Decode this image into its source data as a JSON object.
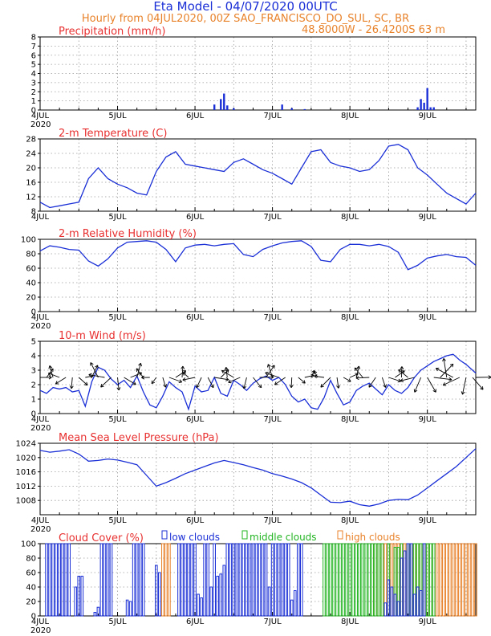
{
  "header": {
    "title": "Eta Model - 04/07/2020 00UTC",
    "subtitle_line1": "Hourly from 04JUL2020, 00Z  SAO_FRANCISCO_DO_SUL, SC, BR",
    "subtitle_line2": "48.8000W - 26.4200S     63  m"
  },
  "x_axis": {
    "ticks": [
      "4JUL",
      "5JUL",
      "6JUL",
      "7JUL",
      "8JUL",
      "9JUL"
    ],
    "year": "2020"
  },
  "legend": {
    "low": "low clouds",
    "middle": "middle clouds",
    "high": "high clouds"
  },
  "colors": {
    "line": "#1a2fd6",
    "low": "#1a2fd6",
    "middle": "#22b422",
    "high": "#e8822a",
    "title": "#e83030"
  },
  "chart_data": [
    {
      "type": "bar",
      "title": "Precipitation (mm/h)",
      "ylim": [
        0,
        8
      ],
      "yticks": [
        "0",
        "1",
        "2",
        "3",
        "4",
        "5",
        "6",
        "7",
        "8"
      ],
      "x": [
        54,
        56,
        57,
        58,
        60,
        75,
        78,
        82,
        117,
        118,
        119,
        120,
        121,
        122
      ],
      "values": [
        0.6,
        1.2,
        1.8,
        0.5,
        0.2,
        0.6,
        0.2,
        0.1,
        0.3,
        1.2,
        0.8,
        2.4,
        0.3,
        0.3
      ]
    },
    {
      "type": "line",
      "title": "2-m Temperature (C)",
      "ylim": [
        8,
        28
      ],
      "yticks": [
        "8",
        "12",
        "16",
        "20",
        "24",
        "28"
      ],
      "x": [
        0,
        3,
        6,
        9,
        12,
        15,
        18,
        21,
        24,
        27,
        30,
        33,
        36,
        39,
        42,
        45,
        48,
        51,
        54,
        57,
        60,
        63,
        66,
        69,
        72,
        75,
        78,
        81,
        84,
        87,
        90,
        93,
        96,
        99,
        102,
        105,
        108,
        111,
        114,
        117,
        120,
        123,
        126,
        129,
        132,
        135
      ],
      "values": [
        10.5,
        9,
        9.5,
        10,
        10.5,
        17,
        20,
        17,
        15.5,
        14.5,
        13,
        12.5,
        19,
        23,
        24.5,
        21,
        20.5,
        20,
        19.5,
        19,
        21.5,
        22.5,
        21,
        19.5,
        18.5,
        17,
        15.5,
        20,
        24.5,
        25,
        21.5,
        20.5,
        20,
        19,
        19.5,
        22,
        26,
        26.5,
        25,
        20,
        18,
        15.5,
        13,
        11.5,
        10,
        13
      ]
    },
    {
      "type": "line",
      "title": "2-m Relative Humidity (%)",
      "ylim": [
        0,
        100
      ],
      "yticks": [
        "0",
        "20",
        "40",
        "60",
        "80",
        "100"
      ],
      "x": [
        0,
        3,
        6,
        9,
        12,
        15,
        18,
        21,
        24,
        27,
        30,
        33,
        36,
        39,
        42,
        45,
        48,
        51,
        54,
        57,
        60,
        63,
        66,
        69,
        72,
        75,
        78,
        81,
        84,
        87,
        90,
        93,
        96,
        99,
        102,
        105,
        108,
        111,
        114,
        117,
        120,
        123,
        126,
        129,
        132,
        135
      ],
      "values": [
        84,
        91,
        89,
        86,
        85,
        70,
        63,
        73,
        88,
        96,
        97,
        98,
        96,
        86,
        69,
        88,
        92,
        93,
        91,
        93,
        94,
        79,
        76,
        86,
        91,
        95,
        97,
        98,
        90,
        71,
        69,
        86,
        93,
        93,
        91,
        93,
        90,
        82,
        58,
        64,
        74,
        77,
        79,
        76,
        75,
        64
      ]
    },
    {
      "type": "line",
      "title": "10-m Wind (m/s)",
      "ylim": [
        0,
        5
      ],
      "yticks": [
        "0",
        "1",
        "2",
        "3",
        "4",
        "5"
      ],
      "x": [
        0,
        2,
        4,
        6,
        8,
        10,
        12,
        14,
        16,
        18,
        20,
        22,
        24,
        26,
        28,
        30,
        32,
        34,
        36,
        38,
        40,
        42,
        44,
        46,
        48,
        50,
        52,
        54,
        56,
        58,
        60,
        62,
        64,
        66,
        68,
        70,
        72,
        74,
        76,
        78,
        80,
        82,
        84,
        86,
        88,
        90,
        92,
        94,
        96,
        98,
        100,
        102,
        104,
        106,
        108,
        110,
        112,
        114,
        116,
        118,
        120,
        122,
        124,
        126,
        128,
        130,
        132,
        134,
        135
      ],
      "values": [
        1.6,
        1.4,
        1.8,
        1.7,
        1.8,
        1.5,
        1.6,
        0.5,
        2.2,
        3.2,
        3.0,
        2.4,
        2.0,
        2.3,
        1.8,
        2.6,
        1.5,
        0.6,
        0.4,
        1.2,
        2.2,
        1.8,
        1.5,
        0.3,
        1.9,
        1.5,
        1.6,
        2.5,
        1.4,
        1.2,
        2.3,
        2.0,
        1.6,
        2.1,
        2.4,
        2.6,
        2.3,
        2.5,
        2.0,
        1.2,
        0.8,
        1.0,
        0.4,
        0.3,
        1.1,
        2.3,
        1.4,
        0.6,
        0.8,
        1.6,
        1.9,
        2.1,
        1.7,
        1.3,
        2.0,
        1.6,
        1.4,
        1.8,
        2.5,
        3.0,
        3.3,
        3.6,
        3.8,
        4.0,
        4.1,
        3.7,
        3.4,
        3.0,
        2.8
      ]
    },
    {
      "type": "line",
      "title": "Mean Sea Level Pressure (hPa)",
      "ylim": [
        1004,
        1024
      ],
      "yticks": [
        "1008",
        "1012",
        "1016",
        "1020",
        "1024"
      ],
      "x": [
        0,
        3,
        6,
        9,
        12,
        15,
        18,
        21,
        24,
        27,
        30,
        33,
        36,
        39,
        42,
        45,
        48,
        51,
        54,
        57,
        60,
        63,
        66,
        69,
        72,
        75,
        78,
        81,
        84,
        87,
        90,
        93,
        96,
        99,
        102,
        105,
        108,
        111,
        114,
        117,
        120,
        123,
        126,
        129,
        132,
        135
      ],
      "values": [
        1022,
        1021.5,
        1021.8,
        1022.2,
        1021,
        1019,
        1019.2,
        1019.6,
        1019.3,
        1018.7,
        1018,
        1015,
        1012,
        1013,
        1014.2,
        1015.5,
        1016.5,
        1017.5,
        1018.5,
        1019.2,
        1018.6,
        1018,
        1017.2,
        1016.5,
        1015.5,
        1014.8,
        1014,
        1013,
        1011.5,
        1009.5,
        1007.5,
        1007.4,
        1007.8,
        1006.8,
        1006.4,
        1007,
        1008,
        1008.3,
        1008.2,
        1009.5,
        1011.5,
        1013.5,
        1015.5,
        1017.5,
        1020,
        1022.5
      ]
    },
    {
      "type": "bar",
      "title": "Cloud Cover (%)",
      "ylim": [
        0,
        100
      ],
      "yticks": [
        "0",
        "20",
        "40",
        "60",
        "80",
        "100"
      ],
      "series": [
        {
          "name": "low clouds",
          "x": [
            2,
            3,
            4,
            5,
            6,
            7,
            8,
            9,
            11,
            12,
            13,
            17,
            18,
            19,
            20,
            21,
            22,
            27,
            28,
            29,
            30,
            31,
            32,
            36,
            37,
            43,
            44,
            45,
            46,
            47,
            48,
            49,
            50,
            51,
            52,
            53,
            54,
            55,
            56,
            57,
            58,
            59,
            60,
            61,
            62,
            63,
            64,
            65,
            66,
            67,
            68,
            69,
            70,
            71,
            72,
            73,
            74,
            75,
            76,
            77,
            78,
            79,
            80,
            81,
            107,
            108,
            109,
            110,
            111,
            112,
            113,
            114,
            115,
            116,
            117,
            118,
            119
          ],
          "values": [
            100,
            100,
            100,
            100,
            100,
            100,
            100,
            100,
            40,
            55,
            55,
            5,
            12,
            100,
            100,
            100,
            100,
            22,
            20,
            100,
            100,
            100,
            100,
            70,
            60,
            100,
            100,
            100,
            100,
            100,
            100,
            30,
            25,
            100,
            100,
            40,
            100,
            55,
            58,
            70,
            100,
            100,
            100,
            100,
            100,
            100,
            100,
            100,
            100,
            100,
            100,
            100,
            100,
            40,
            100,
            100,
            100,
            100,
            100,
            100,
            22,
            35,
            100,
            100,
            18,
            50,
            40,
            30,
            20,
            80,
            90,
            100,
            100,
            30,
            40,
            35,
            100
          ]
        },
        {
          "name": "middle clouds",
          "x": [
            88,
            89,
            90,
            91,
            92,
            93,
            94,
            95,
            96,
            97,
            98,
            99,
            100,
            101,
            102,
            103,
            104,
            105,
            106,
            108,
            110,
            111,
            112,
            114,
            115,
            116,
            117,
            118,
            119,
            120,
            121,
            122
          ],
          "values": [
            100,
            100,
            100,
            100,
            100,
            100,
            100,
            100,
            100,
            100,
            100,
            100,
            100,
            100,
            100,
            100,
            100,
            100,
            100,
            100,
            95,
            95,
            100,
            100,
            100,
            100,
            100,
            100,
            100,
            100,
            100,
            100
          ]
        },
        {
          "name": "high clouds",
          "x": [
            38,
            39,
            40,
            103,
            104,
            105,
            106,
            107,
            108,
            109,
            110,
            111,
            112,
            113,
            114,
            115,
            116,
            117,
            118,
            119,
            120,
            121,
            122,
            123,
            124,
            125,
            126,
            127,
            128,
            129,
            130,
            131,
            132,
            133,
            134,
            135
          ],
          "values": [
            100,
            100,
            100,
            100,
            100,
            100,
            100,
            100,
            100,
            100,
            100,
            100,
            100,
            100,
            100,
            100,
            100,
            100,
            100,
            100,
            100,
            100,
            100,
            100,
            100,
            100,
            100,
            100,
            100,
            100,
            100,
            100,
            100,
            100,
            100,
            100
          ]
        }
      ]
    }
  ]
}
